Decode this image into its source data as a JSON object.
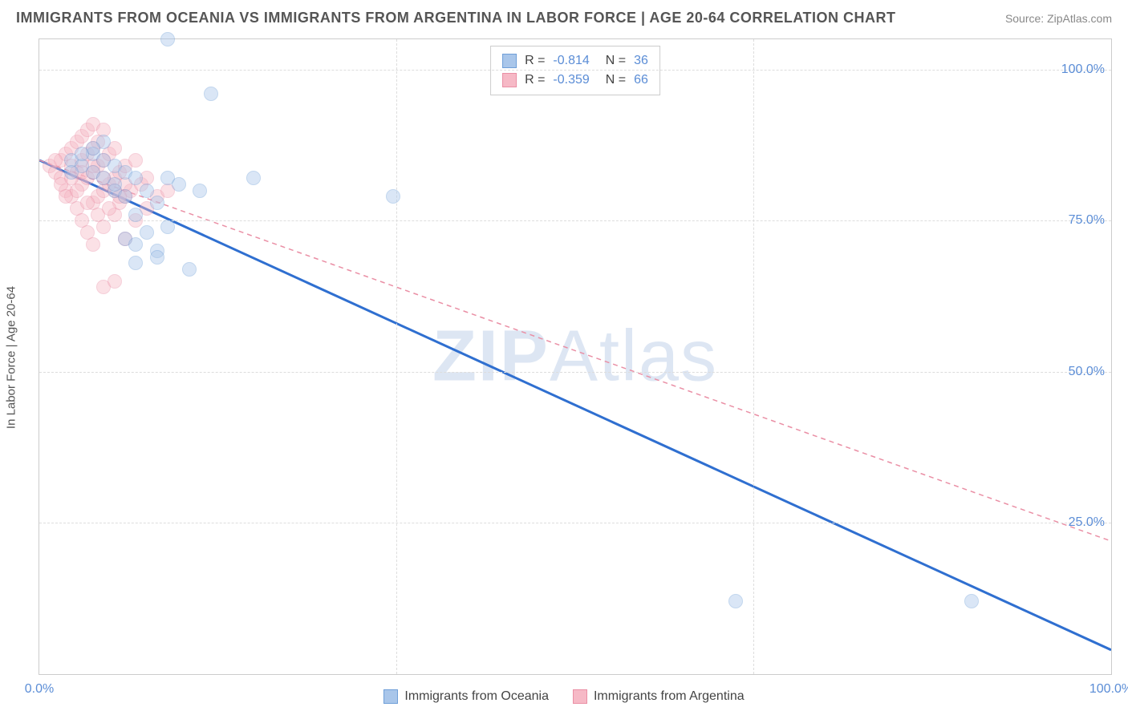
{
  "header": {
    "title": "IMMIGRANTS FROM OCEANIA VS IMMIGRANTS FROM ARGENTINA IN LABOR FORCE | AGE 20-64 CORRELATION CHART",
    "source_label": "Source:",
    "source_name": "ZipAtlas.com"
  },
  "chart": {
    "type": "scatter",
    "y_axis_label": "In Labor Force | Age 20-64",
    "xlim": [
      0,
      100
    ],
    "ylim": [
      0,
      105
    ],
    "x_ticks": [
      0,
      33.3,
      66.6,
      100
    ],
    "x_tick_labels": [
      "0.0%",
      "",
      "",
      "100.0%"
    ],
    "y_ticks": [
      25,
      50,
      75,
      100
    ],
    "y_tick_labels": [
      "25.0%",
      "50.0%",
      "75.0%",
      "100.0%"
    ],
    "grid_color": "#dddddd",
    "background_color": "#ffffff",
    "frame_color": "#cccccc",
    "marker_radius": 9,
    "marker_opacity": 0.42,
    "marker_border_opacity": 0.8,
    "watermark": "ZIPAtlas",
    "stats": [
      {
        "color_fill": "#a9c6ea",
        "color_border": "#6f9fd8",
        "R": "-0.814",
        "N": "36"
      },
      {
        "color_fill": "#f6b9c6",
        "color_border": "#ea8fa5",
        "R": "-0.359",
        "N": "66"
      }
    ],
    "series": [
      {
        "name": "Immigrants from Oceania",
        "color_fill": "#a9c6ea",
        "color_border": "#6f9fd8",
        "trend": {
          "x1": 0,
          "y1": 85,
          "x2": 100,
          "y2": 4,
          "color": "#2f6fd0",
          "width": 3,
          "dash": "none"
        },
        "points": [
          [
            3,
            85
          ],
          [
            4,
            84
          ],
          [
            5,
            83
          ],
          [
            5,
            86
          ],
          [
            6,
            82
          ],
          [
            6,
            85
          ],
          [
            7,
            80
          ],
          [
            7,
            84
          ],
          [
            8,
            83
          ],
          [
            8,
            79
          ],
          [
            9,
            82
          ],
          [
            9,
            76
          ],
          [
            10,
            73
          ],
          [
            10,
            80
          ],
          [
            11,
            70
          ],
          [
            11,
            78
          ],
          [
            12,
            82
          ],
          [
            12,
            74
          ],
          [
            12,
            105
          ],
          [
            13,
            81
          ],
          [
            14,
            67
          ],
          [
            15,
            80
          ],
          [
            16,
            96
          ],
          [
            8,
            72
          ],
          [
            9,
            71
          ],
          [
            20,
            82
          ],
          [
            33,
            79
          ],
          [
            65,
            12
          ],
          [
            87,
            12
          ],
          [
            6,
            88
          ],
          [
            5,
            87
          ],
          [
            4,
            86
          ],
          [
            9,
            68
          ],
          [
            11,
            69
          ],
          [
            7,
            81
          ],
          [
            3,
            83
          ]
        ]
      },
      {
        "name": "Immigrants from Argentina",
        "color_fill": "#f6b9c6",
        "color_border": "#ea8fa5",
        "trend": {
          "x1": 0,
          "y1": 85,
          "x2": 100,
          "y2": 22,
          "color": "#ea8fa5",
          "width": 1.5,
          "dash": "6,5"
        },
        "points": [
          [
            1,
            84
          ],
          [
            1.5,
            83
          ],
          [
            2,
            85
          ],
          [
            2,
            82
          ],
          [
            2.5,
            86
          ],
          [
            2.5,
            80
          ],
          [
            3,
            87
          ],
          [
            3,
            84
          ],
          [
            3,
            79
          ],
          [
            3.5,
            88
          ],
          [
            3.5,
            83
          ],
          [
            3.5,
            77
          ],
          [
            4,
            89
          ],
          [
            4,
            85
          ],
          [
            4,
            81
          ],
          [
            4,
            75
          ],
          [
            4.5,
            90
          ],
          [
            4.5,
            86
          ],
          [
            4.5,
            82
          ],
          [
            4.5,
            73
          ],
          [
            5,
            91
          ],
          [
            5,
            87
          ],
          [
            5,
            83
          ],
          [
            5,
            78
          ],
          [
            5,
            71
          ],
          [
            5.5,
            88
          ],
          [
            5.5,
            84
          ],
          [
            5.5,
            79
          ],
          [
            6,
            90
          ],
          [
            6,
            85
          ],
          [
            6,
            80
          ],
          [
            6,
            74
          ],
          [
            6.5,
            86
          ],
          [
            6.5,
            81
          ],
          [
            7,
            87
          ],
          [
            7,
            82
          ],
          [
            7,
            76
          ],
          [
            7.5,
            83
          ],
          [
            7.5,
            78
          ],
          [
            8,
            84
          ],
          [
            8,
            79
          ],
          [
            8,
            72
          ],
          [
            8.5,
            80
          ],
          [
            9,
            85
          ],
          [
            9,
            75
          ],
          [
            9.5,
            81
          ],
          [
            10,
            82
          ],
          [
            10,
            77
          ],
          [
            11,
            79
          ],
          [
            12,
            80
          ],
          [
            2,
            81
          ],
          [
            3,
            82
          ],
          [
            4,
            83
          ],
          [
            5,
            84
          ],
          [
            6,
            82
          ],
          [
            7,
            80
          ],
          [
            8,
            81
          ],
          [
            2.5,
            79
          ],
          [
            3.5,
            80
          ],
          [
            4.5,
            78
          ],
          [
            5.5,
            76
          ],
          [
            6.5,
            77
          ],
          [
            7.5,
            79
          ],
          [
            1.5,
            85
          ],
          [
            6,
            64
          ],
          [
            7,
            65
          ]
        ]
      }
    ],
    "legend": [
      {
        "swatch_fill": "#a9c6ea",
        "swatch_border": "#6f9fd8",
        "label": "Immigrants from Oceania"
      },
      {
        "swatch_fill": "#f6b9c6",
        "swatch_border": "#ea8fa5",
        "label": "Immigrants from Argentina"
      }
    ]
  }
}
